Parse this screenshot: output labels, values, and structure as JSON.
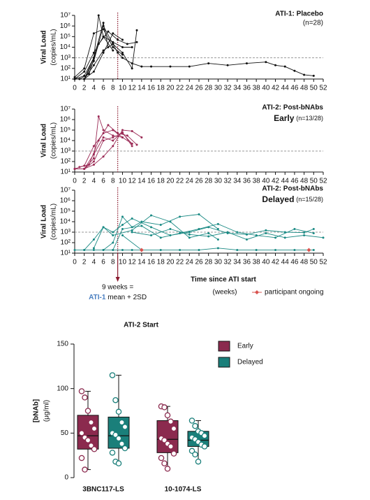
{
  "chart_data": [
    {
      "type": "line",
      "title": "ATI-1: Placebo",
      "subtitle": "(n=28)",
      "title_color": "#4a7fc1",
      "ylabel": "Viral Load",
      "ylabel_unit": "(copies/mL)",
      "log_scale": true,
      "ylim": [
        10,
        10000000
      ],
      "yticks": [
        {
          "value": 10,
          "label": "10¹"
        },
        {
          "value": 100,
          "label": "10²"
        },
        {
          "value": 1000,
          "label": "10³"
        },
        {
          "value": 10000,
          "label": "10⁴"
        },
        {
          "value": 100000,
          "label": "10⁵"
        },
        {
          "value": 1000000,
          "label": "10⁶"
        },
        {
          "value": 10000000,
          "label": "10⁷"
        }
      ],
      "xlim": [
        0,
        52
      ],
      "xticks": [
        0,
        2,
        4,
        6,
        8,
        10,
        12,
        14,
        16,
        18,
        20,
        22,
        24,
        26,
        28,
        30,
        32,
        34,
        36,
        38,
        40,
        42,
        44,
        46,
        48,
        50,
        52
      ],
      "threshold": 1000,
      "marker_x": 9,
      "series": [
        {
          "color": "#111111",
          "x": [
            0,
            2,
            4,
            6,
            8,
            9,
            10,
            12,
            14,
            16,
            20,
            24,
            28,
            32,
            36,
            40,
            42,
            44,
            46,
            48,
            50
          ],
          "values": [
            10,
            10,
            200,
            5000,
            20000,
            3000,
            1000,
            300,
            150,
            150,
            150,
            150,
            300,
            200,
            300,
            400,
            200,
            150,
            60,
            25,
            20
          ]
        },
        {
          "color": "#111111",
          "x": [
            0,
            2,
            4,
            5,
            6,
            8
          ],
          "values": [
            10,
            20,
            1000,
            10000000,
            100000,
            5000
          ]
        },
        {
          "color": "#111111",
          "x": [
            0,
            2,
            4,
            6,
            8,
            10,
            12
          ],
          "values": [
            10,
            50,
            3000,
            100000,
            30000,
            10000,
            10000
          ]
        },
        {
          "color": "#111111",
          "x": [
            0,
            2,
            4,
            6,
            8
          ],
          "values": [
            10,
            10,
            500,
            1000000,
            20000
          ]
        },
        {
          "color": "#111111",
          "x": [
            1,
            3,
            5,
            7,
            9,
            11,
            13
          ],
          "values": [
            10,
            30,
            20000,
            300000,
            50000,
            20000,
            30000
          ]
        },
        {
          "color": "#111111",
          "x": [
            0,
            2,
            4,
            6,
            8,
            10
          ],
          "values": [
            15,
            100,
            200000,
            500000,
            10000,
            2000
          ]
        },
        {
          "color": "#111111",
          "x": [
            0,
            2,
            4,
            6,
            8,
            10
          ],
          "values": [
            10,
            10,
            50,
            3000,
            200000,
            50000
          ]
        },
        {
          "color": "#111111",
          "x": [
            0,
            2,
            4,
            6,
            7
          ],
          "values": [
            10,
            10,
            1000,
            2000000,
            10000
          ]
        },
        {
          "color": "#111111",
          "x": [
            8,
            10,
            12,
            13
          ],
          "values": [
            20000,
            3000,
            100,
            400000
          ]
        }
      ]
    },
    {
      "type": "line",
      "title": "ATI-2: Post-bNAbs",
      "subtitle": "Early",
      "n_label": "(n=13/28)",
      "title_color": "#8b2a4e",
      "ylabel": "Viral Load",
      "ylabel_unit": "(copies/mL)",
      "log_scale": true,
      "ylim": [
        10,
        10000000
      ],
      "yticks": [
        {
          "value": 10,
          "label": "10¹"
        },
        {
          "value": 100,
          "label": "10²"
        },
        {
          "value": 1000,
          "label": "10³"
        },
        {
          "value": 10000,
          "label": "10⁴"
        },
        {
          "value": 100000,
          "label": "10⁵"
        },
        {
          "value": 1000000,
          "label": "10⁶"
        },
        {
          "value": 10000000,
          "label": "10⁷"
        }
      ],
      "xlim": [
        0,
        52
      ],
      "xticks": [
        0,
        2,
        4,
        6,
        8,
        10,
        12,
        14,
        16,
        18,
        20,
        22,
        24,
        26,
        28,
        30,
        32,
        34,
        36,
        38,
        40,
        42,
        44,
        46,
        48,
        50,
        52
      ],
      "threshold": 1000,
      "marker_x": 9,
      "series": [
        {
          "color": "#9b2a55",
          "x": [
            0,
            2,
            4,
            5,
            6,
            8,
            10,
            12
          ],
          "values": [
            20,
            20,
            200,
            2000000,
            100000,
            30000,
            20000,
            5000
          ]
        },
        {
          "color": "#9b2a55",
          "x": [
            0,
            2,
            4,
            6,
            8,
            10
          ],
          "values": [
            20,
            40,
            3000,
            50000,
            100000,
            20000
          ]
        },
        {
          "color": "#9b2a55",
          "x": [
            0,
            2,
            4,
            6,
            8,
            10,
            12
          ],
          "values": [
            20,
            20,
            100,
            10000,
            20000,
            50000,
            5000
          ]
        },
        {
          "color": "#9b2a55",
          "x": [
            1,
            3,
            5,
            7,
            9,
            11,
            13
          ],
          "values": [
            30,
            50,
            10000,
            300000,
            50000,
            30000,
            4000
          ]
        },
        {
          "color": "#9b2a55",
          "x": [
            0,
            2,
            4,
            6,
            8,
            10,
            12,
            14
          ],
          "values": [
            20,
            20,
            50,
            300,
            3000,
            100000,
            80000,
            20000
          ]
        },
        {
          "color": "#9b2a55",
          "x": [
            2,
            4,
            6,
            8,
            10,
            12
          ],
          "values": [
            20,
            500,
            20000,
            10000,
            60000,
            3000
          ]
        }
      ]
    },
    {
      "type": "line",
      "title": "ATI-2: Post-bNAbs",
      "subtitle": "Delayed",
      "n_label": "(n=15/28)",
      "title_color": "#1a8a84",
      "ylabel": "Viral Load",
      "ylabel_unit": "(copies/mL)",
      "log_scale": true,
      "ylim": [
        10,
        10000000
      ],
      "yticks": [
        {
          "value": 10,
          "label": "10¹"
        },
        {
          "value": 100,
          "label": "10²"
        },
        {
          "value": 1000,
          "label": "10³"
        },
        {
          "value": 10000,
          "label": "10⁴"
        },
        {
          "value": 100000,
          "label": "10⁵"
        },
        {
          "value": 1000000,
          "label": "10⁶"
        },
        {
          "value": 10000000,
          "label": "10⁷"
        }
      ],
      "xlim": [
        0,
        52
      ],
      "xticks": [
        0,
        2,
        4,
        6,
        8,
        10,
        12,
        14,
        16,
        18,
        20,
        22,
        24,
        26,
        28,
        30,
        32,
        34,
        36,
        38,
        40,
        42,
        44,
        46,
        48,
        50,
        52
      ],
      "threshold": 1000,
      "marker_x": 9,
      "xlabel": "Time since ATI start",
      "xlabel_unit": "(weeks)",
      "annotation": [
        "9 weeks =",
        "ATI-1",
        "mean + 2SD"
      ],
      "ongoing_label": "participant ongoing",
      "ongoing_color": "#d9534f",
      "ongoing_x": [
        14,
        49
      ],
      "ongoing_y": [
        20,
        20
      ],
      "series": [
        {
          "color": "#1a8a84",
          "x": [
            0,
            2,
            4,
            6,
            8,
            10,
            12,
            14
          ],
          "values": [
            20,
            20,
            20,
            20,
            20,
            20,
            20,
            20
          ]
        },
        {
          "color": "#1a8a84",
          "x": [
            2,
            4,
            6,
            8,
            10,
            12,
            16,
            20,
            24,
            28,
            32,
            36,
            40,
            44,
            48,
            50
          ],
          "values": [
            20,
            200,
            3000,
            1000,
            5000,
            20000,
            3000,
            500,
            1000,
            3000,
            800,
            600,
            1500,
            1000,
            900,
            2000
          ]
        },
        {
          "color": "#1a8a84",
          "x": [
            6,
            8,
            10,
            12,
            14,
            18,
            22,
            26,
            30
          ],
          "values": [
            20,
            100,
            30000,
            3000,
            10000,
            5000,
            30000,
            50000,
            2000
          ]
        },
        {
          "color": "#1a8a84",
          "x": [
            8,
            10,
            14,
            18,
            22,
            26,
            30,
            34,
            38,
            42,
            46,
            50
          ],
          "values": [
            20,
            2000,
            4000,
            300,
            800,
            2000,
            6000,
            1000,
            500,
            300,
            2000,
            800
          ]
        },
        {
          "color": "#1a8a84",
          "x": [
            4,
            6,
            8,
            12,
            16,
            20,
            24,
            28,
            30
          ],
          "values": [
            30,
            3000,
            500,
            1500,
            40000,
            10000,
            300,
            800,
            200
          ]
        },
        {
          "color": "#1a8a84",
          "x": [
            10,
            14,
            18,
            22,
            26,
            30,
            34,
            38,
            42,
            46,
            50
          ],
          "values": [
            500,
            20,
            20,
            20,
            20,
            30,
            20,
            20,
            20,
            20,
            20
          ]
        },
        {
          "color": "#1a8a84",
          "x": [
            12,
            16,
            20,
            24,
            28,
            32,
            36,
            40,
            44,
            48,
            52
          ],
          "values": [
            1000,
            500,
            2000,
            600,
            400,
            1000,
            200,
            800,
            300,
            500,
            300
          ]
        }
      ]
    },
    {
      "type": "box",
      "title": "ATI-2 Start",
      "ylabel": "[bNAb]",
      "ylabel_unit": "(μg/ml)",
      "ylim": [
        0,
        150
      ],
      "yticks": [
        0,
        50,
        100,
        150
      ],
      "categories": [
        "3BNC117-LS",
        "10-1074-LS"
      ],
      "series": [
        {
          "name": "Early",
          "color": "#8b2a4e",
          "box": [
            {
              "min": 9,
              "q1": 32,
              "median": 47,
              "q3": 70,
              "max": 97
            },
            {
              "min": 10,
              "q1": 28,
              "median": 43,
              "q3": 64,
              "max": 80
            }
          ],
          "values": [
            [
              97,
              90,
              75,
              62,
              55,
              50,
              45,
              42,
              36,
              32,
              22,
              9
            ],
            [
              80,
              79,
              70,
              63,
              55,
              44,
              42,
              38,
              35,
              27,
              22,
              16,
              10
            ]
          ]
        },
        {
          "name": "Delayed",
          "color": "#1a7f7a",
          "box": [
            {
              "min": 16,
              "q1": 33,
              "median": 47,
              "q3": 68,
              "max": 115
            },
            {
              "min": 18,
              "q1": 35,
              "median": 42,
              "q3": 52,
              "max": 64
            }
          ],
          "values": [
            [
              115,
              87,
              74,
              62,
              57,
              50,
              48,
              44,
              38,
              33,
              28,
              18,
              16
            ],
            [
              64,
              58,
              52,
              50,
              47,
              45,
              43,
              40,
              37,
              35,
              30,
              26,
              18
            ]
          ]
        }
      ]
    }
  ]
}
